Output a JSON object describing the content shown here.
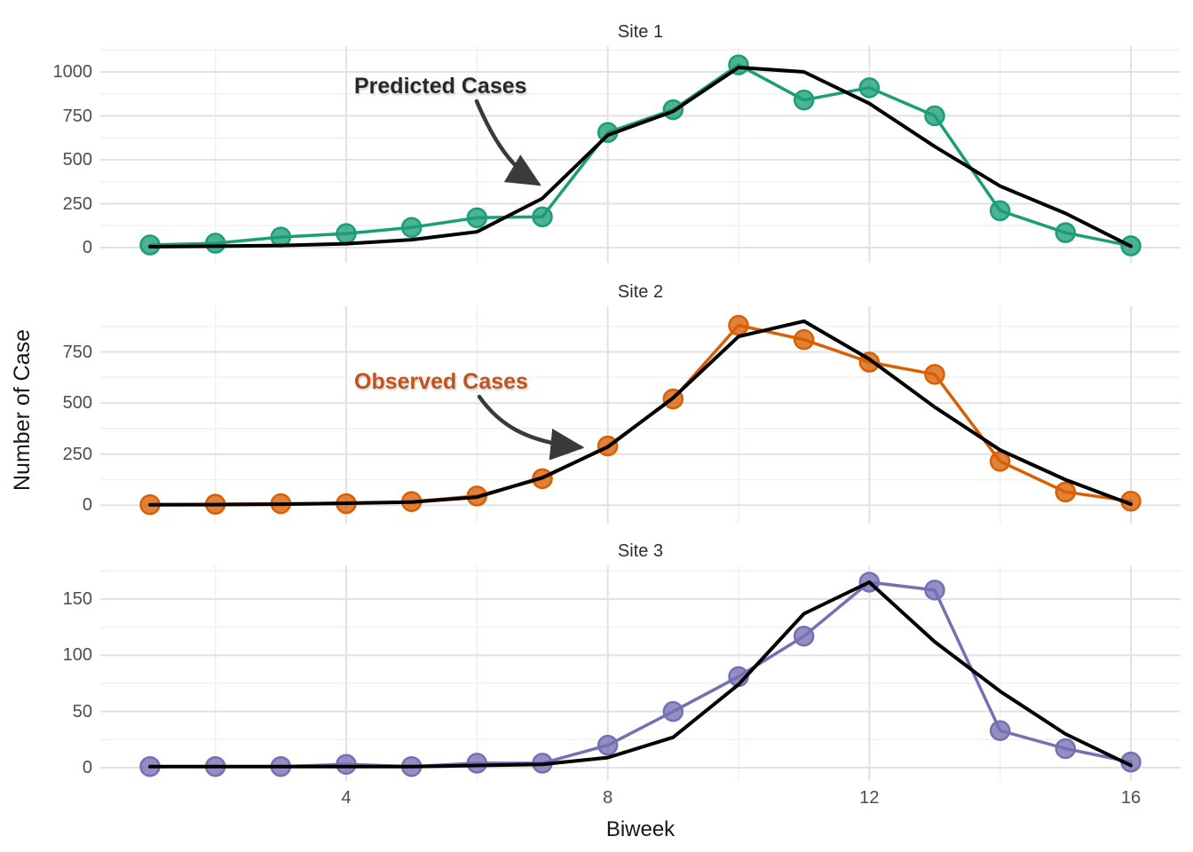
{
  "figure": {
    "xlabel": "Biweek",
    "ylabel": "Number of Case",
    "xticks": [
      4,
      8,
      12,
      16
    ],
    "xticks_minor": [
      2,
      6,
      10,
      14
    ],
    "annotations": {
      "predicted_label": "Predicted Cases",
      "observed_label": "Observed Cases"
    }
  },
  "colors": {
    "predicted_line": "#000000",
    "site1": "#1B9E77",
    "site2": "#D95F02",
    "site3": "#7570B3",
    "annotation_predicted_text": "#282828",
    "annotation_observed_text": "#C5521A",
    "arrow": "#3A3A3A",
    "grid_major": "#E2E2E2",
    "grid_minor": "#F1F1F1",
    "tick_text": "#4D4D4D",
    "title_text": "#2E2E2E"
  },
  "chart_data": [
    {
      "type": "line",
      "title": "Site 1",
      "xlabel": "Biweek",
      "ylabel": "Number of Case",
      "x": [
        1,
        2,
        3,
        4,
        5,
        6,
        7,
        8,
        9,
        10,
        11,
        12,
        13,
        14,
        15,
        16
      ],
      "yticks": [
        0,
        250,
        500,
        750,
        1000
      ],
      "yticks_minor": [
        125,
        375,
        625,
        875,
        1125
      ],
      "ylim": [
        -86,
        1146
      ],
      "series": [
        {
          "name": "Observed Cases",
          "color": "#1B9E77",
          "style": "points-line",
          "values": [
            15,
            25,
            60,
            80,
            115,
            170,
            175,
            655,
            785,
            1040,
            840,
            910,
            750,
            210,
            85,
            10
          ]
        },
        {
          "name": "Predicted Cases",
          "color": "#000000",
          "style": "line",
          "values": [
            5,
            8,
            12,
            22,
            45,
            90,
            280,
            640,
            775,
            1025,
            1000,
            820,
            575,
            350,
            195,
            8
          ]
        }
      ]
    },
    {
      "type": "line",
      "title": "Site 2",
      "xlabel": "Biweek",
      "ylabel": "Number of Case",
      "x": [
        1,
        2,
        3,
        4,
        5,
        6,
        7,
        8,
        9,
        10,
        11,
        12,
        13,
        14,
        15,
        16
      ],
      "yticks": [
        0,
        250,
        500,
        750
      ],
      "yticks_minor": [
        125,
        375,
        625,
        875
      ],
      "ylim": [
        -90,
        973
      ],
      "series": [
        {
          "name": "Observed Cases",
          "color": "#D95F02",
          "style": "points-line",
          "values": [
            3,
            5,
            8,
            8,
            18,
            45,
            130,
            290,
            520,
            880,
            810,
            700,
            640,
            215,
            65,
            20
          ]
        },
        {
          "name": "Predicted Cases",
          "color": "#000000",
          "style": "line",
          "values": [
            2,
            3,
            5,
            10,
            15,
            40,
            135,
            285,
            525,
            825,
            900,
            715,
            480,
            270,
            125,
            5
          ]
        }
      ]
    },
    {
      "type": "line",
      "title": "Site 3",
      "xlabel": "Biweek",
      "ylabel": "Number of Case",
      "x": [
        1,
        2,
        3,
        4,
        5,
        6,
        7,
        8,
        9,
        10,
        11,
        12,
        13,
        14,
        15,
        16
      ],
      "yticks": [
        0,
        50,
        100,
        150
      ],
      "yticks_minor": [
        25,
        75,
        125,
        175
      ],
      "ylim": [
        -12,
        180
      ],
      "series": [
        {
          "name": "Observed Cases",
          "color": "#7570B3",
          "style": "points-line",
          "values": [
            1,
            1,
            1,
            3,
            1,
            4,
            4,
            20,
            50,
            81,
            117,
            165,
            158,
            33,
            17,
            5
          ]
        },
        {
          "name": "Predicted Cases",
          "color": "#000000",
          "style": "line",
          "values": [
            1,
            1,
            1,
            1,
            1,
            2,
            3,
            9,
            27,
            74,
            137,
            165,
            112,
            68,
            30,
            2
          ]
        }
      ]
    }
  ]
}
